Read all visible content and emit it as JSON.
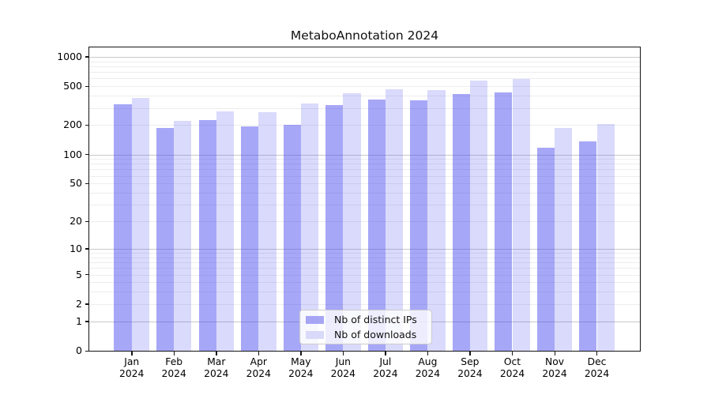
{
  "figure": {
    "background": "#ffffff",
    "title": "MetaboAnnotation 2024"
  },
  "chart_data": {
    "type": "bar",
    "title": "MetaboAnnotation 2024",
    "categories": [
      "Jan",
      "Feb",
      "Mar",
      "Apr",
      "May",
      "Jun",
      "Jul",
      "Aug",
      "Sep",
      "Oct",
      "Nov",
      "Dec"
    ],
    "category_year": "2024",
    "series": [
      {
        "name": "Nb of distinct IPs",
        "color": "rgba(68,68,238,0.47)",
        "legend_color": "#a6a6f5",
        "values": [
          330,
          186,
          226,
          193,
          200,
          323,
          368,
          362,
          417,
          430,
          118,
          136
        ]
      },
      {
        "name": "Nb of downloads",
        "color": "rgba(68,68,238,0.20)",
        "legend_color": "#d9d9f9",
        "values": [
          380,
          220,
          278,
          273,
          334,
          425,
          466,
          460,
          575,
          593,
          188,
          204
        ]
      }
    ],
    "xlabel": "",
    "ylabel": "",
    "yscale": "log1p",
    "yticks": [
      1000,
      500,
      200,
      100,
      50,
      20,
      10,
      5,
      2,
      1,
      0
    ],
    "ylim": [
      0,
      1300
    ],
    "grid": true,
    "gridlines": {
      "major": [
        1,
        10,
        100,
        1000
      ],
      "minor": [
        2,
        3,
        4,
        5,
        6,
        7,
        8,
        9,
        20,
        30,
        40,
        50,
        60,
        70,
        80,
        90,
        200,
        300,
        400,
        500,
        600,
        700,
        800,
        900
      ]
    },
    "legend_position": "lower center"
  }
}
